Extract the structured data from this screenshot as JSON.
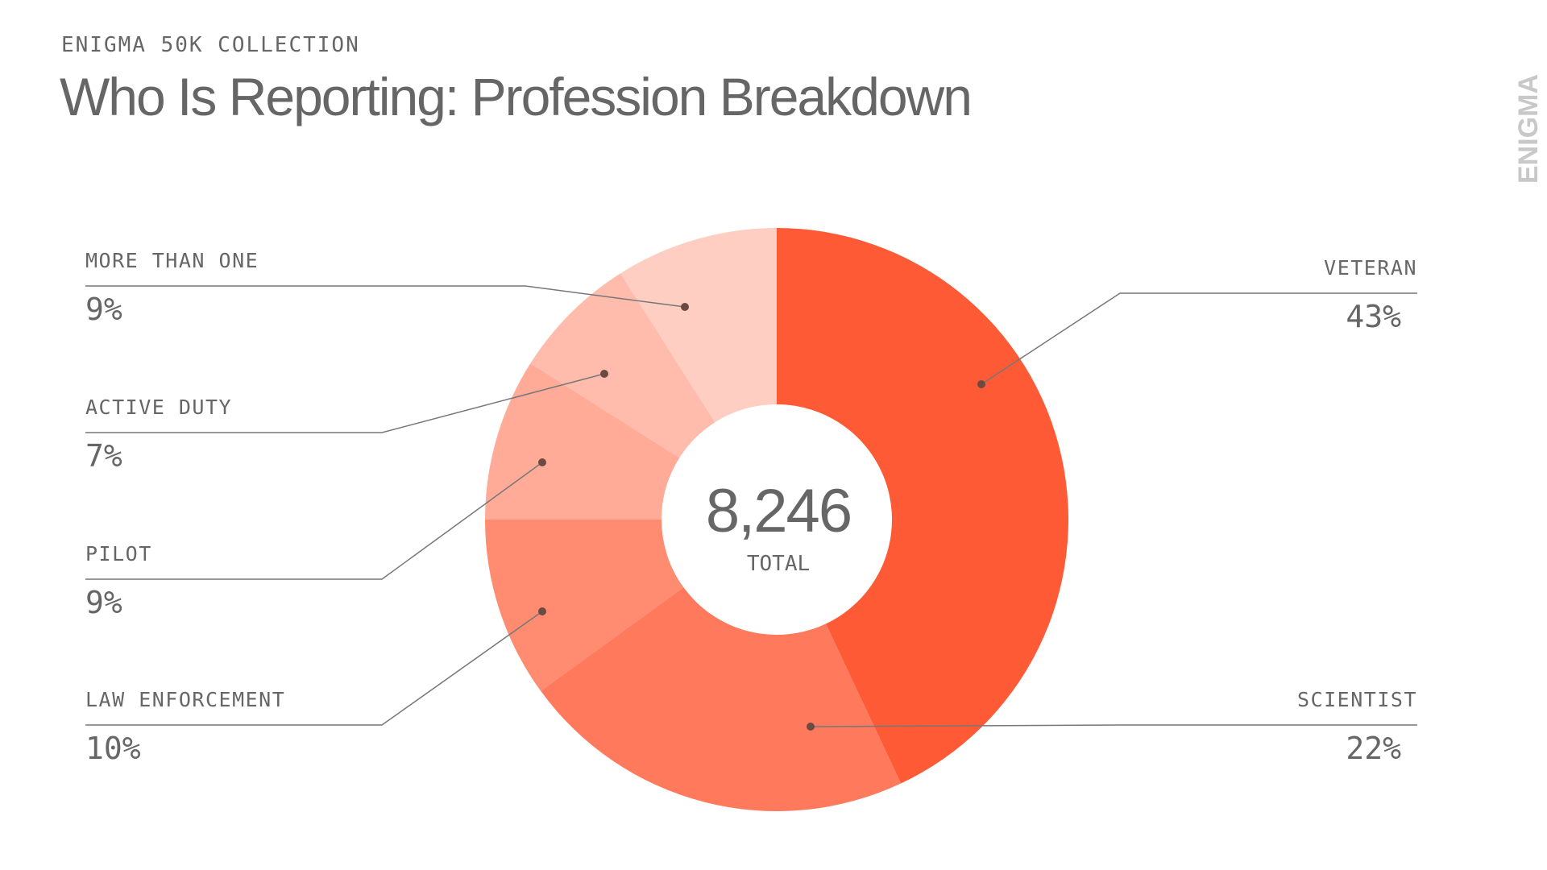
{
  "chart_data": {
    "type": "donut",
    "supertitle": "ENIGMA 50K COLLECTION",
    "title": "Who Is Reporting: Profession Breakdown",
    "brand": "ENIGMA",
    "categories": [
      "VETERAN",
      "SCIENTIST",
      "LAW ENFORCEMENT",
      "PILOT",
      "ACTIVE DUTY",
      "MORE THAN ONE"
    ],
    "values": [
      43,
      22,
      10,
      9,
      7,
      9
    ],
    "value_labels": [
      "43%",
      "22%",
      "10%",
      "9%",
      "7%",
      "9%"
    ],
    "colors": [
      "#ff5a36",
      "#ff7a5c",
      "#ff8b70",
      "#ffab98",
      "#ffbcac",
      "#ffcec3"
    ],
    "total": {
      "value": 8246,
      "label": "8,246"
    },
    "total_label": "TOTAL"
  }
}
